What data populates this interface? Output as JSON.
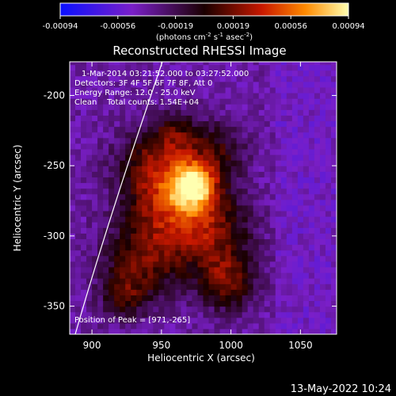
{
  "colorbar": {
    "ticks": [
      "-0.00094",
      "-0.00056",
      "-0.00019",
      "0.00019",
      "0.00056",
      "0.00094"
    ],
    "units_main": "(photons cm",
    "units_sup1": "-2",
    "units_mid": " s",
    "units_sup2": "-1",
    "units_mid2": " asec",
    "units_sup3": "-2",
    "units_end": ")"
  },
  "chart_data": {
    "type": "heatmap",
    "title": "Reconstructed RHESSI Image",
    "xlabel": "Heliocentric X (arcsec)",
    "ylabel": "Heliocentric Y (arcsec)",
    "xlim": [
      884,
      1076
    ],
    "ylim": [
      -370,
      -176
    ],
    "xticks": [
      "900",
      "950",
      "1000",
      "1050"
    ],
    "xtick_values": [
      900,
      950,
      1000,
      1050
    ],
    "yticks": [
      "-200",
      "-250",
      "-300",
      "-350"
    ],
    "ytick_values": [
      -200,
      -250,
      -300,
      -350
    ],
    "value_range": [
      -0.00094,
      0.00094
    ],
    "peak": [
      971,
      -265
    ],
    "annotations": {
      "time": "1-Mar-2014 03:21:52.000 to 03:27:52.000",
      "detectors": "Detectors: 3F 4F 5F 6F 7F 8F, Att 0",
      "energy": "Energy Range: 12.0 - 25.0 keV",
      "clean": "Clean    Total counts: 1.54E+04",
      "peak_text": "Position of Peak = [971,-265]"
    },
    "grid": false
  },
  "footer": {
    "date": "13-May-2022 10:24"
  },
  "colors": {
    "background": "#000000",
    "text": "#ffffff"
  }
}
